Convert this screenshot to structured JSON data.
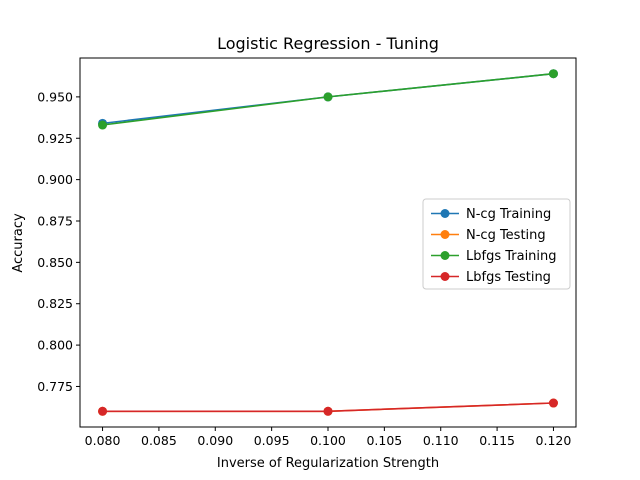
{
  "chart_data": {
    "type": "line",
    "title": "Logistic Regression - Tuning",
    "xlabel": "Inverse of Regularization Strength",
    "ylabel": "Accuracy",
    "x": [
      0.08,
      0.1,
      0.12
    ],
    "xlim": [
      0.078,
      0.122
    ],
    "ylim": [
      0.7505,
      0.9735
    ],
    "xticks": [
      0.08,
      0.085,
      0.09,
      0.095,
      0.1,
      0.105,
      0.11,
      0.115,
      0.12
    ],
    "xtick_labels": [
      "0.080",
      "0.085",
      "0.090",
      "0.095",
      "0.100",
      "0.105",
      "0.110",
      "0.115",
      "0.120"
    ],
    "yticks": [
      0.775,
      0.8,
      0.825,
      0.85,
      0.875,
      0.9,
      0.925,
      0.95
    ],
    "ytick_labels": [
      "0.775",
      "0.800",
      "0.825",
      "0.850",
      "0.875",
      "0.900",
      "0.925",
      "0.950"
    ],
    "grid": false,
    "legend_position": "center-right",
    "series": [
      {
        "name": "N-cg Training",
        "color": "#1f77b4",
        "values": [
          0.934,
          0.95,
          0.964
        ]
      },
      {
        "name": "N-cg Testing",
        "color": "#ff7f0e",
        "values": [
          0.76,
          0.76,
          0.765
        ]
      },
      {
        "name": "Lbfgs Training",
        "color": "#2ca02c",
        "values": [
          0.933,
          0.95,
          0.964
        ]
      },
      {
        "name": "Lbfgs Testing",
        "color": "#d62728",
        "values": [
          0.76,
          0.76,
          0.765
        ]
      }
    ]
  }
}
